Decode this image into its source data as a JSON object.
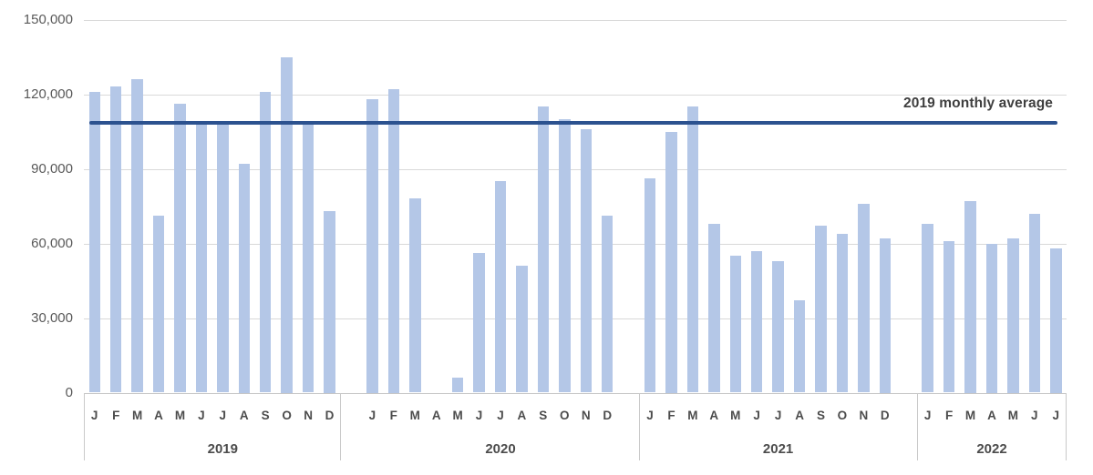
{
  "chart_data": {
    "type": "bar",
    "title": "",
    "xlabel": "",
    "ylabel": "",
    "y_axis": {
      "min": 0,
      "max": 150000,
      "tick_interval": 30000,
      "tick_labels": [
        "0",
        "30,000",
        "60,000",
        "90,000",
        "120,000",
        "150,000"
      ]
    },
    "grid": true,
    "legend": "none",
    "bar_color": "#b4c7e7",
    "grid_color": "#d9d9d9",
    "axis_text_color": "#595959",
    "groups": [
      {
        "year": "2019",
        "months": [
          "J",
          "F",
          "M",
          "A",
          "M",
          "J",
          "J",
          "A",
          "S",
          "O",
          "N",
          "D"
        ],
        "values": [
          121000,
          123000,
          126000,
          71000,
          116000,
          108000,
          108000,
          92000,
          121000,
          135000,
          108000,
          73000
        ]
      },
      {
        "year": "2020",
        "months": [
          "J",
          "F",
          "M",
          "A",
          "M",
          "J",
          "J",
          "A",
          "S",
          "O",
          "N",
          "D"
        ],
        "values": [
          118000,
          122000,
          78000,
          0,
          6000,
          56000,
          85000,
          51000,
          115000,
          110000,
          106000,
          71000
        ]
      },
      {
        "year": "2021",
        "months": [
          "J",
          "F",
          "M",
          "A",
          "M",
          "J",
          "J",
          "A",
          "S",
          "O",
          "N",
          "D"
        ],
        "values": [
          86000,
          105000,
          115000,
          68000,
          55000,
          57000,
          53000,
          37000,
          67000,
          64000,
          76000,
          62000
        ]
      },
      {
        "year": "2022",
        "months": [
          "J",
          "F",
          "M",
          "A",
          "M",
          "J",
          "J"
        ],
        "values": [
          68000,
          61000,
          77000,
          60000,
          62000,
          72000,
          58000
        ]
      }
    ],
    "reference_line": {
      "label": "2019 monthly average",
      "value": 108500,
      "color": "#2c528f",
      "label_color": "#3f3f3f"
    }
  }
}
